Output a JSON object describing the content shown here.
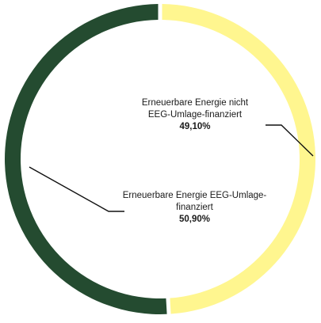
{
  "chart_data": {
    "type": "pie",
    "variant": "donut",
    "title": "",
    "slices": [
      {
        "label": "Erneuerbare Energie nicht EEG-Umlage-finanziert",
        "value_text": "49,10%",
        "value": 49.1,
        "color": "#FFF68F"
      },
      {
        "label": "Erneuerbare Energie EEG-Umlage-finanziert",
        "value_text": "50,90%",
        "value": 50.9,
        "color": "#244B30"
      }
    ],
    "legend": "none",
    "data_labels": "inside-with-leader-lines"
  }
}
